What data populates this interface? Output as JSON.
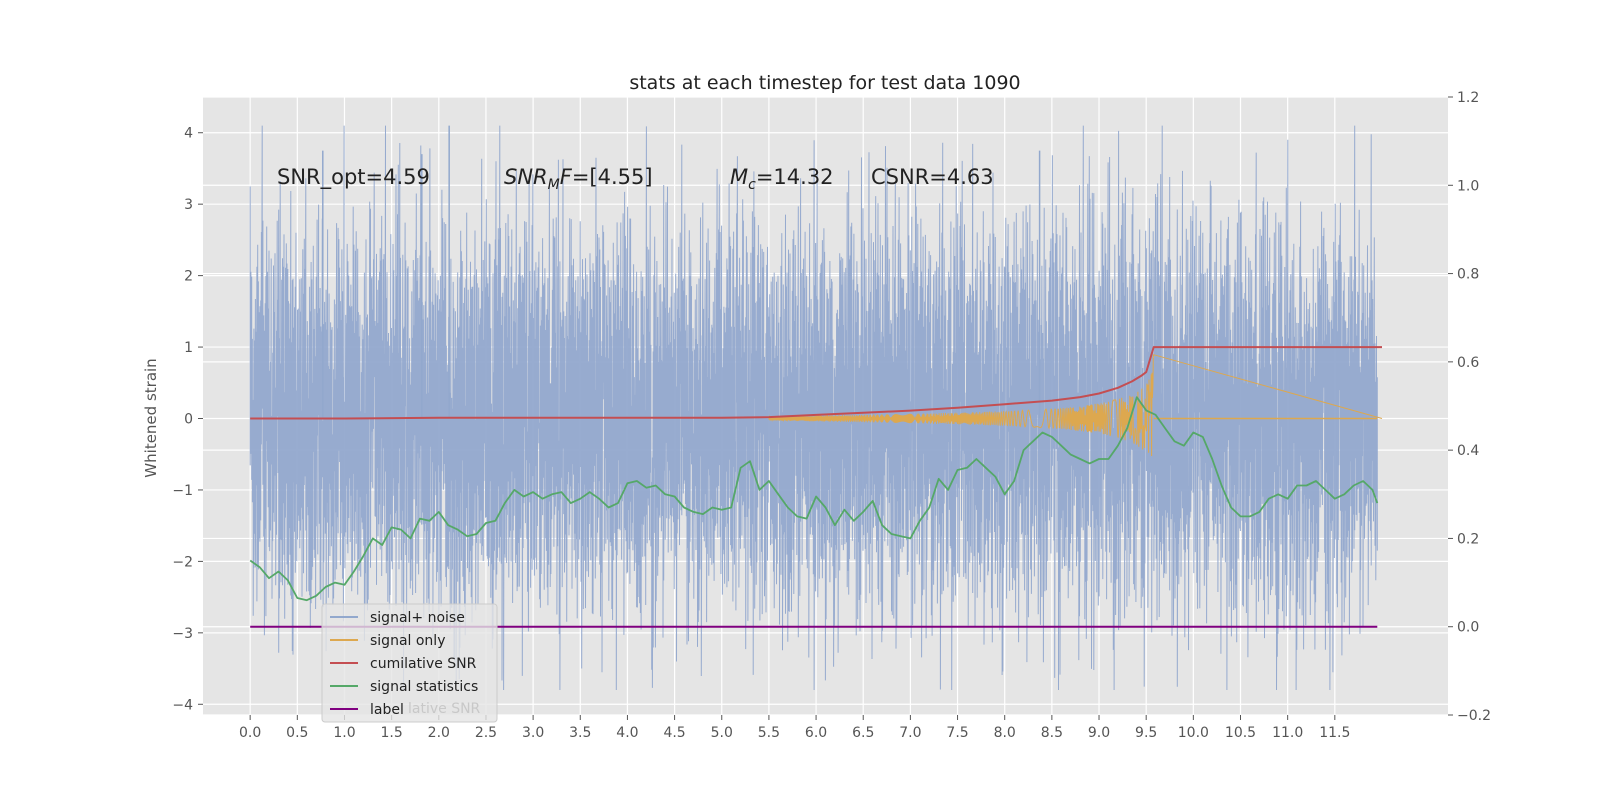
{
  "chart_data": {
    "type": "line",
    "title": "stats at each timestep for test data 1090",
    "ylabel": "Whitened strain",
    "xlabel": "",
    "xlim": [
      -0.5,
      12.7
    ],
    "ylim": [
      -4.15,
      4.5
    ],
    "y2lim": [
      -0.2,
      1.2
    ],
    "x_ticks": [
      "0.0",
      "0.5",
      "1.0",
      "1.5",
      "2.0",
      "2.5",
      "3.0",
      "3.5",
      "4.0",
      "4.5",
      "5.0",
      "5.5",
      "6.0",
      "6.5",
      "7.0",
      "7.5",
      "8.0",
      "8.5",
      "9.0",
      "9.5",
      "10.0",
      "10.5",
      "11.0",
      "11.5"
    ],
    "y_ticks": [
      "4",
      "3",
      "2",
      "1",
      "0",
      "−1",
      "−2",
      "−3",
      "−4"
    ],
    "y2_ticks": [
      "1.2",
      "1.0",
      "0.8",
      "0.6",
      "0.4",
      "0.2",
      "0.0",
      "−0.2"
    ],
    "annotations": {
      "snr_opt": "SNR_opt=4.59",
      "snr_mf_main": "SNR",
      "snr_mf_sub": "M",
      "snr_mf_rest": "F=[4.55]",
      "mc_main": "M",
      "mc_sub": "c",
      "mc_rest": "=14.32",
      "csnr": "CSNR=4.63"
    },
    "legend": {
      "entries": [
        "signal+ noise",
        "signal only",
        "cumilative SNR",
        "signal statistics",
        "label"
      ],
      "hidden_text": "lative SNR",
      "placement": "lower-left"
    },
    "colors": {
      "noise": "#92a8cd",
      "signal": "#dda84f",
      "csnr": "#c44e52",
      "stats": "#55a868",
      "label": "#800080",
      "axes_bg": "#e5e5e5",
      "grid": "#ffffff"
    },
    "series": [
      {
        "name": "cumilative SNR",
        "axis": "left",
        "x": [
          0.0,
          1.0,
          2.0,
          3.0,
          4.0,
          5.0,
          5.5,
          6.0,
          6.5,
          7.0,
          7.5,
          8.0,
          8.5,
          8.8,
          9.0,
          9.2,
          9.35,
          9.45,
          9.5,
          9.58,
          10.0,
          11.0,
          12.0
        ],
        "y": [
          0.0,
          0.0,
          0.01,
          0.01,
          0.01,
          0.01,
          0.02,
          0.05,
          0.08,
          0.11,
          0.15,
          0.2,
          0.25,
          0.3,
          0.35,
          0.43,
          0.52,
          0.6,
          0.65,
          1.0,
          1.0,
          1.0,
          1.0
        ]
      },
      {
        "name": "signal statistics",
        "axis": "right",
        "x": [
          0.0,
          0.1,
          0.2,
          0.3,
          0.4,
          0.5,
          0.6,
          0.7,
          0.8,
          0.9,
          1.0,
          1.1,
          1.2,
          1.3,
          1.4,
          1.5,
          1.6,
          1.7,
          1.8,
          1.9,
          2.0,
          2.1,
          2.2,
          2.3,
          2.4,
          2.5,
          2.6,
          2.7,
          2.8,
          2.9,
          3.0,
          3.1,
          3.2,
          3.3,
          3.4,
          3.5,
          3.6,
          3.7,
          3.8,
          3.9,
          4.0,
          4.1,
          4.2,
          4.3,
          4.4,
          4.5,
          4.6,
          4.7,
          4.8,
          4.9,
          5.0,
          5.1,
          5.2,
          5.3,
          5.4,
          5.5,
          5.6,
          5.7,
          5.8,
          5.9,
          6.0,
          6.1,
          6.2,
          6.3,
          6.4,
          6.5,
          6.6,
          6.7,
          6.8,
          6.9,
          7.0,
          7.1,
          7.2,
          7.3,
          7.4,
          7.5,
          7.6,
          7.7,
          7.8,
          7.9,
          8.0,
          8.1,
          8.2,
          8.3,
          8.4,
          8.5,
          8.6,
          8.7,
          8.8,
          8.9,
          9.0,
          9.1,
          9.2,
          9.3,
          9.4,
          9.5,
          9.6,
          9.7,
          9.8,
          9.9,
          10.0,
          10.1,
          10.2,
          10.3,
          10.4,
          10.5,
          10.6,
          10.7,
          10.8,
          10.9,
          11.0,
          11.1,
          11.2,
          11.3,
          11.4,
          11.5,
          11.6,
          11.7,
          11.8,
          11.9,
          11.95
        ],
        "y": [
          0.15,
          0.135,
          0.11,
          0.125,
          0.105,
          0.065,
          0.06,
          0.07,
          0.09,
          0.1,
          0.095,
          0.125,
          0.16,
          0.2,
          0.185,
          0.225,
          0.22,
          0.2,
          0.245,
          0.24,
          0.26,
          0.23,
          0.22,
          0.205,
          0.21,
          0.235,
          0.24,
          0.28,
          0.31,
          0.295,
          0.305,
          0.29,
          0.3,
          0.305,
          0.28,
          0.29,
          0.305,
          0.29,
          0.27,
          0.28,
          0.325,
          0.33,
          0.315,
          0.32,
          0.3,
          0.295,
          0.27,
          0.26,
          0.255,
          0.27,
          0.265,
          0.27,
          0.36,
          0.375,
          0.31,
          0.33,
          0.3,
          0.27,
          0.25,
          0.245,
          0.295,
          0.27,
          0.23,
          0.265,
          0.24,
          0.26,
          0.285,
          0.23,
          0.21,
          0.205,
          0.2,
          0.24,
          0.27,
          0.335,
          0.31,
          0.355,
          0.36,
          0.38,
          0.36,
          0.34,
          0.3,
          0.33,
          0.4,
          0.42,
          0.44,
          0.43,
          0.41,
          0.39,
          0.38,
          0.37,
          0.38,
          0.38,
          0.41,
          0.45,
          0.52,
          0.49,
          0.48,
          0.45,
          0.42,
          0.41,
          0.44,
          0.43,
          0.38,
          0.32,
          0.27,
          0.25,
          0.25,
          0.26,
          0.29,
          0.3,
          0.29,
          0.32,
          0.32,
          0.33,
          0.31,
          0.29,
          0.3,
          0.32,
          0.33,
          0.31,
          0.28
        ]
      },
      {
        "name": "label",
        "axis": "right",
        "x": [
          0.0,
          11.95
        ],
        "y": [
          0.0,
          0.0
        ]
      },
      {
        "name": "signal+ noise",
        "axis": "left",
        "description": "dense noise band roughly ±2 with peaks to ~4.1 and dips to ~-3.8 over 0–12 s"
      },
      {
        "name": "signal only",
        "axis": "left",
        "description": "chirp starting ~5.5 s, amplitude growing to ~0.9 near 9.5 s, ending at 9.58 s"
      }
    ]
  }
}
